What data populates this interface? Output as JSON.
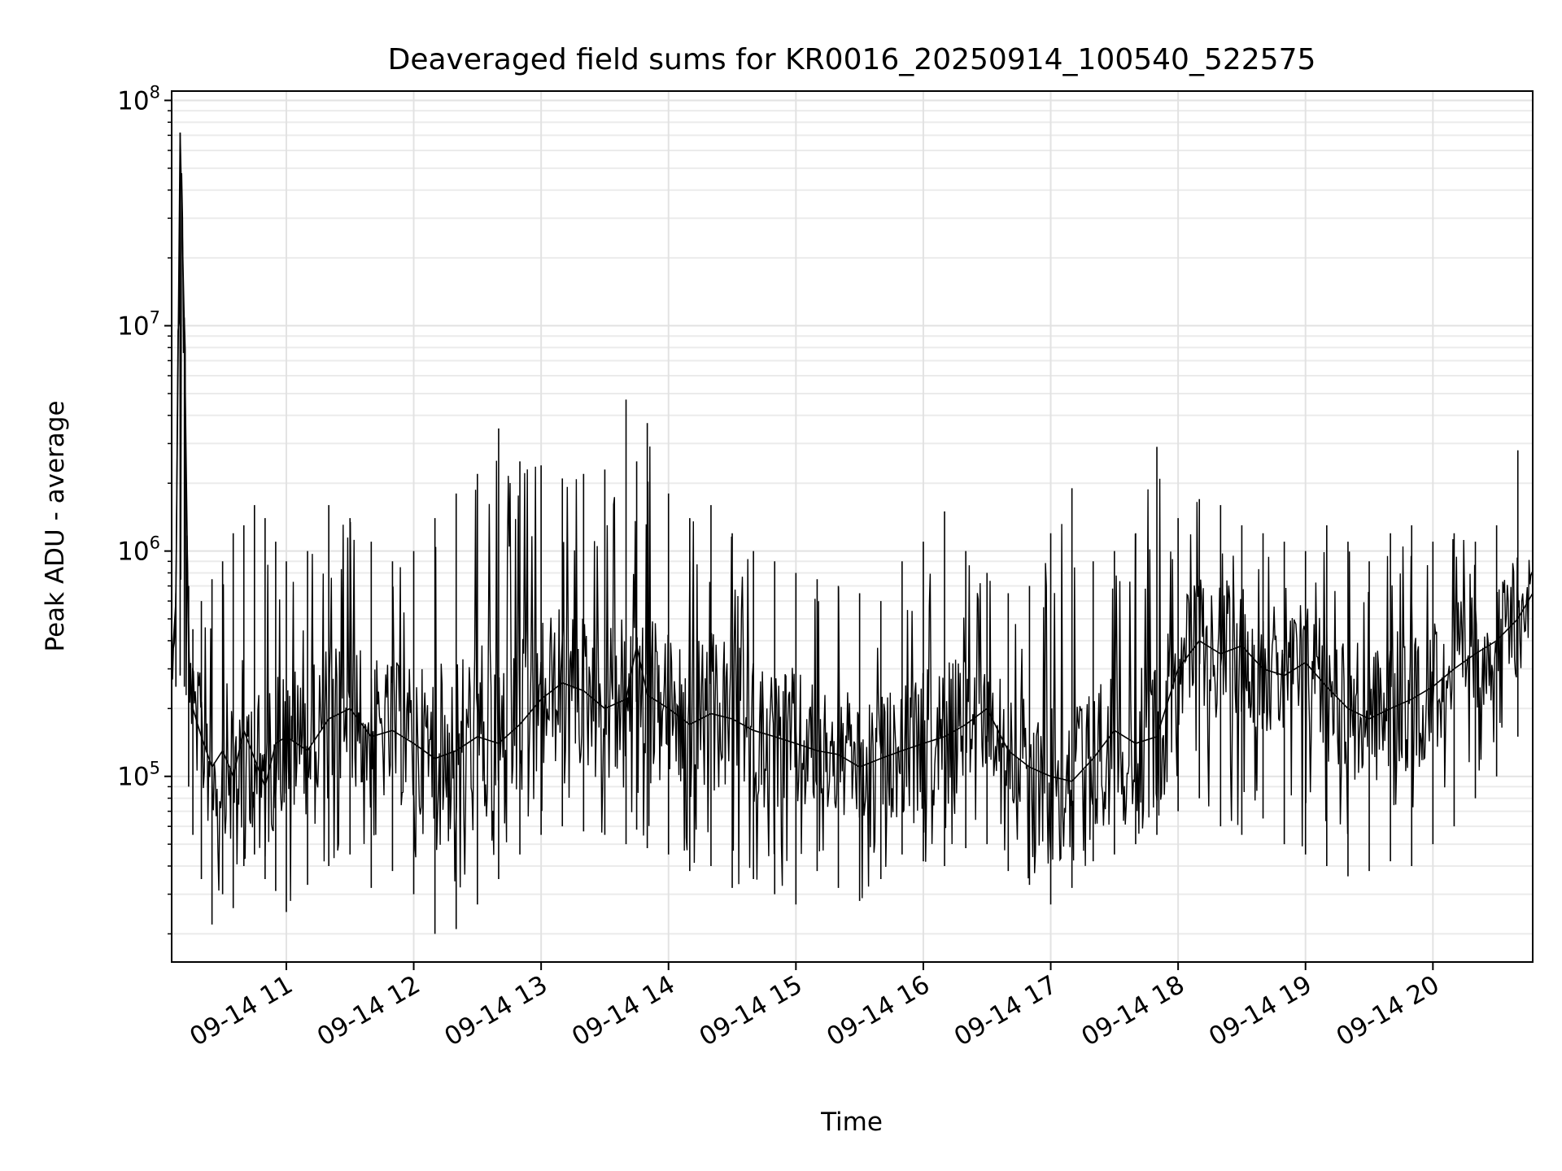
{
  "chart_data": {
    "type": "line",
    "title": "Deaveraged field sums for KR0016_20250914_100540_522575",
    "xlabel": "Time",
    "ylabel": "Peak ADU - average",
    "yscale": "log",
    "ylim": [
      15000,
      110000000
    ],
    "xlim": [
      "09-14 10:06",
      "09-14 20:47"
    ],
    "grid": true,
    "line_color": "#000000",
    "x_ticks": [
      {
        "value": "09-14 11:00",
        "label": "09-14 11"
      },
      {
        "value": "09-14 12:00",
        "label": "09-14 12"
      },
      {
        "value": "09-14 13:00",
        "label": "09-14 13"
      },
      {
        "value": "09-14 14:00",
        "label": "09-14 14"
      },
      {
        "value": "09-14 15:00",
        "label": "09-14 15"
      },
      {
        "value": "09-14 16:00",
        "label": "09-14 16"
      },
      {
        "value": "09-14 17:00",
        "label": "09-14 17"
      },
      {
        "value": "09-14 18:00",
        "label": "09-14 18"
      },
      {
        "value": "09-14 19:00",
        "label": "09-14 19"
      },
      {
        "value": "09-14 20:00",
        "label": "09-14 20"
      }
    ],
    "y_ticks": [
      {
        "value": 100000,
        "base": "10",
        "exp": "5"
      },
      {
        "value": 1000000,
        "base": "10",
        "exp": "6"
      },
      {
        "value": 10000000,
        "base": "10",
        "exp": "7"
      },
      {
        "value": 100000000,
        "base": "10",
        "exp": "8"
      }
    ],
    "series": [
      {
        "x": [
          "09-14 10:06",
          "09-14 10:08",
          "09-14 10:10",
          "09-14 10:12",
          "09-14 10:14",
          "09-14 10:16",
          "09-14 10:20",
          "09-14 10:25",
          "09-14 10:30",
          "09-14 10:35",
          "09-14 10:40",
          "09-14 10:45",
          "09-14 10:50",
          "09-14 10:55",
          "09-14 11:00",
          "09-14 11:10",
          "09-14 11:20",
          "09-14 11:30",
          "09-14 11:40",
          "09-14 11:50",
          "09-14 12:00",
          "09-14 12:10",
          "09-14 12:20",
          "09-14 12:30",
          "09-14 12:40",
          "09-14 12:50",
          "09-14 13:00",
          "09-14 13:10",
          "09-14 13:20",
          "09-14 13:30",
          "09-14 13:40",
          "09-14 13:45",
          "09-14 13:50",
          "09-14 14:00",
          "09-14 14:10",
          "09-14 14:20",
          "09-14 14:30",
          "09-14 14:40",
          "09-14 14:50",
          "09-14 15:00",
          "09-14 15:10",
          "09-14 15:20",
          "09-14 15:30",
          "09-14 15:40",
          "09-14 15:50",
          "09-14 16:00",
          "09-14 16:10",
          "09-14 16:20",
          "09-14 16:30",
          "09-14 16:40",
          "09-14 16:50",
          "09-14 17:00",
          "09-14 17:10",
          "09-14 17:20",
          "09-14 17:30",
          "09-14 17:40",
          "09-14 17:50",
          "09-14 18:00",
          "09-14 18:10",
          "09-14 18:20",
          "09-14 18:30",
          "09-14 18:40",
          "09-14 18:50",
          "09-14 19:00",
          "09-14 19:10",
          "09-14 19:20",
          "09-14 19:30",
          "09-14 19:40",
          "09-14 19:50",
          "09-14 20:00",
          "09-14 20:10",
          "09-14 20:20",
          "09-14 20:30",
          "09-14 20:40",
          "09-14 20:47"
        ],
        "values": [
          300000,
          600000,
          72000000,
          9500000,
          350000,
          200000,
          150000,
          110000,
          130000,
          100000,
          160000,
          120000,
          90000,
          140000,
          150000,
          130000,
          180000,
          200000,
          150000,
          160000,
          140000,
          120000,
          130000,
          150000,
          140000,
          170000,
          220000,
          260000,
          240000,
          200000,
          220000,
          380000,
          230000,
          200000,
          170000,
          190000,
          180000,
          160000,
          150000,
          140000,
          130000,
          125000,
          110000,
          120000,
          130000,
          140000,
          150000,
          170000,
          200000,
          130000,
          110000,
          100000,
          95000,
          120000,
          160000,
          140000,
          150000,
          300000,
          400000,
          350000,
          380000,
          300000,
          280000,
          320000,
          250000,
          200000,
          180000,
          200000,
          220000,
          250000,
          300000,
          350000,
          400000,
          500000,
          650000
        ],
        "mins": [
          180000,
          250000,
          280000,
          250000,
          90000,
          55000,
          35000,
          22000,
          30000,
          26000,
          40000,
          45000,
          35000,
          31000,
          25000,
          33000,
          40000,
          45000,
          32000,
          38000,
          30000,
          20000,
          21000,
          27000,
          35000,
          45000,
          55000,
          60000,
          57000,
          55000,
          50000,
          58000,
          48000,
          45000,
          38000,
          40000,
          32000,
          35000,
          30000,
          27000,
          38000,
          32000,
          28000,
          35000,
          45000,
          42000,
          40000,
          48000,
          50000,
          38000,
          33000,
          27000,
          32000,
          42000,
          45000,
          50000,
          55000,
          70000,
          80000,
          60000,
          55000,
          65000,
          50000,
          45000,
          40000,
          36000,
          38000,
          42000,
          40000,
          50000,
          60000,
          80000,
          100000,
          150000,
          200000
        ],
        "maxs": [
          600000,
          650000,
          72000000,
          9500000,
          700000,
          450000,
          600000,
          750000,
          900000,
          1200000,
          1300000,
          1600000,
          1400000,
          1100000,
          900000,
          1000000,
          1600000,
          1400000,
          1100000,
          900000,
          1000000,
          1400000,
          1800000,
          2200000,
          3500000,
          2500000,
          2400000,
          2100000,
          2200000,
          2300000,
          4700000,
          2500000,
          3700000,
          1800000,
          1400000,
          1600000,
          1200000,
          1000000,
          900000,
          800000,
          750000,
          700000,
          650000,
          600000,
          900000,
          1100000,
          1500000,
          1000000,
          800000,
          650000,
          700000,
          1200000,
          1900000,
          900000,
          1000000,
          1200000,
          2900000,
          1400000,
          1700000,
          1600000,
          1300000,
          1200000,
          1100000,
          1000000,
          1300000,
          1100000,
          900000,
          1200000,
          1300000,
          1100000,
          1200000,
          1100000,
          1300000,
          2800000,
          900000
        ]
      }
    ]
  }
}
